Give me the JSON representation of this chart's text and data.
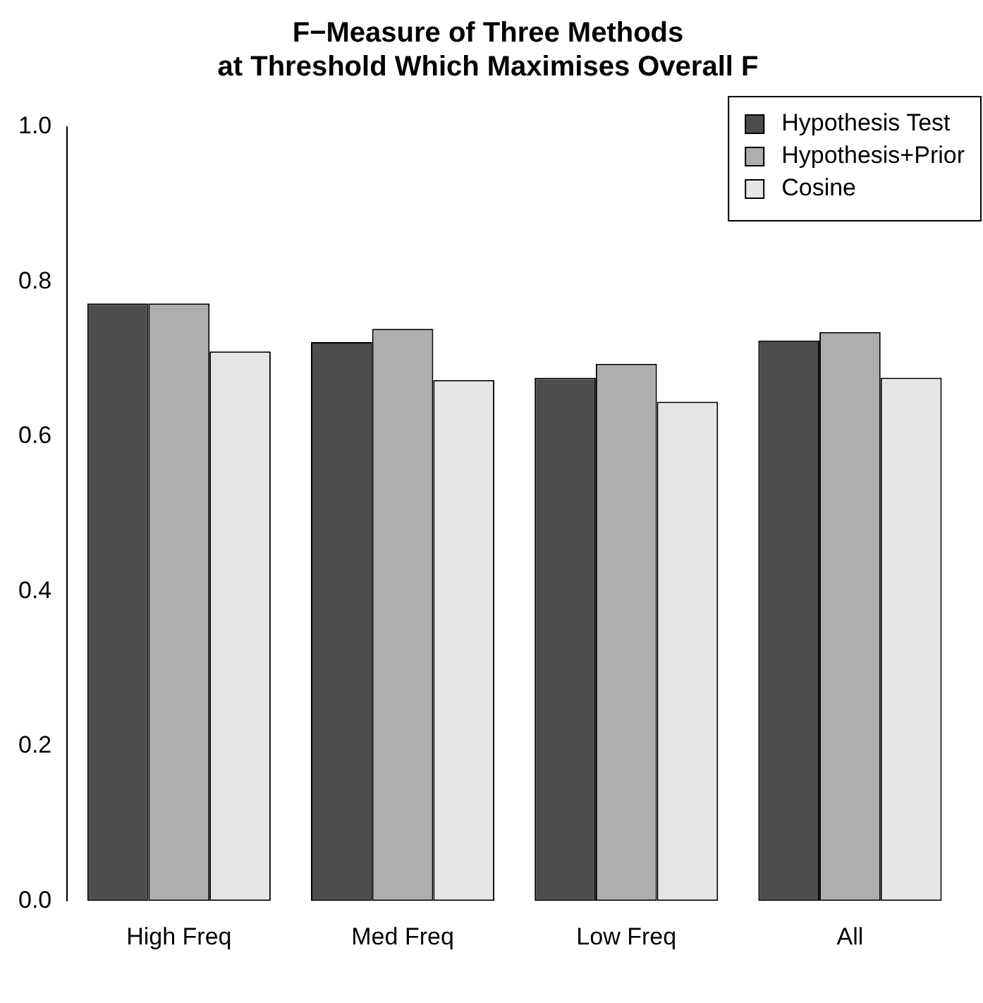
{
  "chart_data": {
    "type": "bar",
    "title": "F−Measure of Three Methods\nat Threshold Which Maximises Overall F",
    "categories": [
      "High Freq",
      "Med Freq",
      "Low Freq",
      "All"
    ],
    "series": [
      {
        "name": "Hypothesis Test",
        "color": "#4d4d4d",
        "values": [
          0.772,
          0.722,
          0.676,
          0.724
        ]
      },
      {
        "name": "Hypothesis+Prior",
        "color": "#aeaeae",
        "values": [
          0.772,
          0.739,
          0.694,
          0.735
        ]
      },
      {
        "name": "Cosine",
        "color": "#e6e6e6",
        "values": [
          0.71,
          0.673,
          0.645,
          0.676
        ]
      }
    ],
    "ylim": [
      0,
      1
    ],
    "yticks": [
      {
        "value": 0,
        "label": "0.0"
      },
      {
        "value": 0.2,
        "label": "0.2"
      },
      {
        "value": 0.4,
        "label": "0.4"
      },
      {
        "value": 0.6,
        "label": "0.6"
      },
      {
        "value": 0.8,
        "label": "0.8"
      },
      {
        "value": 1,
        "label": "1.0"
      }
    ],
    "grid": false,
    "legend": "top right"
  }
}
